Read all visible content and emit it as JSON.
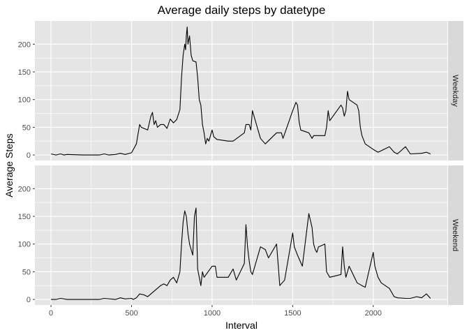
{
  "chart_data": {
    "type": "line",
    "title": "Average daily steps by datetype",
    "xlabel": "Interval",
    "ylabel": "Average Steps",
    "xlim": [
      -100,
      2460
    ],
    "ylim": [
      -10,
      242
    ],
    "x_ticks": [
      0,
      500,
      1000,
      1500,
      2000
    ],
    "y_ticks": [
      0,
      50,
      100,
      150,
      200
    ],
    "grid": true,
    "colors": {
      "panel": "#e5e5e5",
      "strip": "#d9d9d9",
      "line": "#000000",
      "grid": "#ffffff"
    },
    "panels": [
      {
        "label": "Weekday",
        "x": [
          0,
          30,
          60,
          80,
          100,
          200,
          300,
          330,
          360,
          400,
          430,
          460,
          500,
          530,
          550,
          560,
          600,
          620,
          630,
          640,
          650,
          660,
          680,
          700,
          720,
          740,
          760,
          780,
          800,
          810,
          820,
          830,
          835,
          840,
          845,
          850,
          860,
          870,
          880,
          900,
          910,
          920,
          930,
          940,
          950,
          960,
          970,
          980,
          1000,
          1010,
          1030,
          1100,
          1130,
          1200,
          1210,
          1230,
          1240,
          1250,
          1300,
          1330,
          1400,
          1430,
          1440,
          1500,
          1520,
          1530,
          1540,
          1550,
          1600,
          1620,
          1630,
          1700,
          1710,
          1720,
          1730,
          1800,
          1810,
          1820,
          1830,
          1840,
          1850,
          1900,
          1910,
          1920,
          1930,
          1950,
          2000,
          2030,
          2100,
          2130,
          2150,
          2200,
          2230,
          2300,
          2330,
          2355
        ],
        "values": [
          2,
          0,
          2,
          0,
          1,
          0,
          0,
          2,
          0,
          1,
          3,
          1,
          4,
          20,
          55,
          50,
          45,
          70,
          77,
          55,
          62,
          50,
          55,
          55,
          48,
          65,
          58,
          64,
          82,
          140,
          180,
          200,
          190,
          215,
          231,
          200,
          215,
          180,
          170,
          168,
          140,
          100,
          90,
          55,
          40,
          20,
          30,
          25,
          45,
          33,
          28,
          25,
          25,
          40,
          55,
          55,
          45,
          80,
          30,
          20,
          40,
          40,
          30,
          80,
          95,
          90,
          60,
          45,
          40,
          30,
          35,
          35,
          50,
          80,
          62,
          90,
          85,
          70,
          80,
          115,
          100,
          90,
          80,
          50,
          35,
          20,
          10,
          5,
          15,
          5,
          2,
          15,
          2,
          3,
          5,
          2
        ]
      },
      {
        "label": "Weekend",
        "x": [
          0,
          30,
          60,
          100,
          200,
          300,
          330,
          400,
          430,
          460,
          500,
          510,
          530,
          550,
          580,
          600,
          640,
          660,
          680,
          700,
          720,
          740,
          760,
          780,
          800,
          810,
          820,
          830,
          840,
          850,
          860,
          870,
          880,
          890,
          900,
          910,
          920,
          930,
          940,
          950,
          1000,
          1020,
          1030,
          1100,
          1130,
          1150,
          1200,
          1210,
          1220,
          1230,
          1240,
          1250,
          1300,
          1330,
          1350,
          1400,
          1420,
          1450,
          1500,
          1510,
          1530,
          1560,
          1600,
          1620,
          1630,
          1640,
          1650,
          1660,
          1700,
          1710,
          1730,
          1800,
          1810,
          1820,
          1830,
          1850,
          1900,
          1930,
          1950,
          2000,
          2010,
          2020,
          2030,
          2050,
          2100,
          2130,
          2150,
          2200,
          2230,
          2270,
          2300,
          2330,
          2355
        ],
        "values": [
          0,
          0,
          2,
          0,
          0,
          0,
          2,
          0,
          3,
          1,
          2,
          0,
          3,
          10,
          8,
          5,
          15,
          20,
          25,
          28,
          25,
          35,
          40,
          30,
          50,
          100,
          140,
          160,
          150,
          120,
          100,
          90,
          80,
          150,
          165,
          55,
          40,
          25,
          50,
          40,
          60,
          60,
          40,
          40,
          55,
          35,
          65,
          135,
          95,
          70,
          50,
          45,
          95,
          90,
          75,
          100,
          25,
          35,
          120,
          95,
          80,
          60,
          155,
          130,
          100,
          90,
          85,
          95,
          100,
          50,
          40,
          45,
          95,
          60,
          40,
          60,
          30,
          25,
          22,
          85,
          60,
          50,
          40,
          30,
          20,
          5,
          3,
          2,
          2,
          5,
          3,
          10,
          2
        ]
      }
    ]
  }
}
